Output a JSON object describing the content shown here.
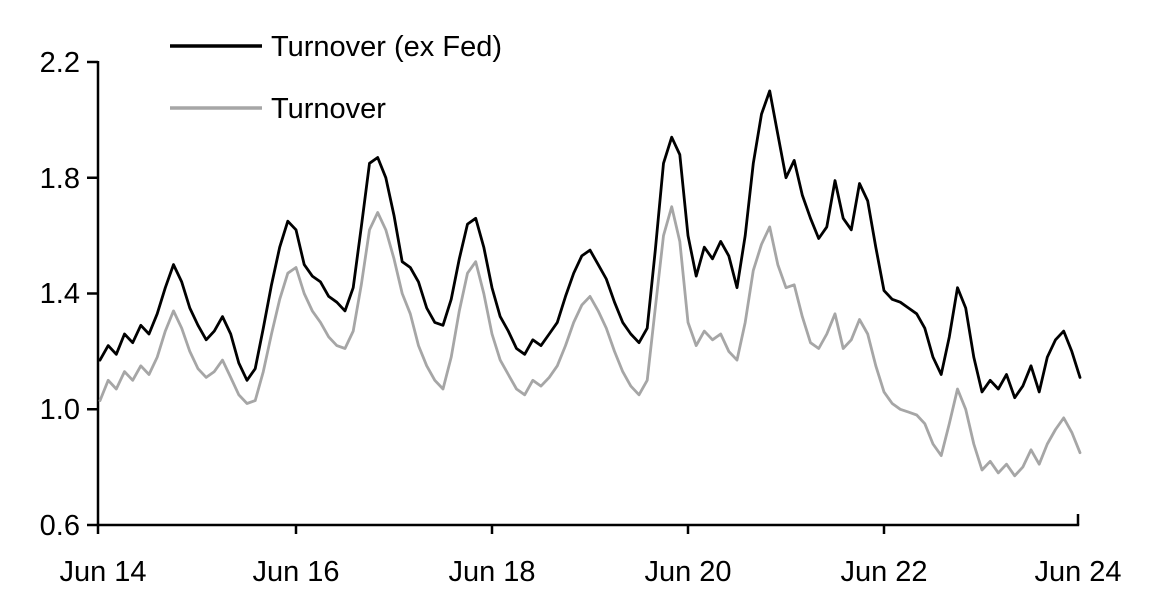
{
  "chart_data": {
    "type": "line",
    "title": "",
    "x_tick_labels": [
      "Jun 14",
      "Jun 16",
      "Jun 18",
      "Jun 20",
      "Jun 22",
      "Jun 24"
    ],
    "y_tick_labels": [
      "2.2",
      "1.8",
      "1.4",
      "1.0",
      "0.6"
    ],
    "y_ticks": [
      0.6,
      1.0,
      1.4,
      1.8,
      2.2
    ],
    "ylim": [
      0.6,
      2.2
    ],
    "x_range": "monthly samples, Jun 2014 to Jun 2024 (121 points)",
    "grid": "off",
    "legend_position": "top-left inside plot",
    "axis_color": "#000000",
    "series": [
      {
        "name": "Turnover (ex Fed)",
        "color": "#000000",
        "values": [
          1.17,
          1.22,
          1.19,
          1.26,
          1.23,
          1.29,
          1.26,
          1.33,
          1.42,
          1.5,
          1.44,
          1.35,
          1.29,
          1.24,
          1.27,
          1.32,
          1.26,
          1.16,
          1.1,
          1.14,
          1.28,
          1.43,
          1.56,
          1.65,
          1.62,
          1.5,
          1.46,
          1.44,
          1.39,
          1.37,
          1.34,
          1.42,
          1.63,
          1.85,
          1.87,
          1.8,
          1.67,
          1.51,
          1.49,
          1.44,
          1.35,
          1.3,
          1.29,
          1.38,
          1.52,
          1.64,
          1.66,
          1.56,
          1.42,
          1.32,
          1.27,
          1.21,
          1.19,
          1.24,
          1.22,
          1.26,
          1.3,
          1.39,
          1.47,
          1.53,
          1.55,
          1.5,
          1.45,
          1.37,
          1.3,
          1.26,
          1.23,
          1.28,
          1.55,
          1.85,
          1.94,
          1.88,
          1.6,
          1.46,
          1.56,
          1.52,
          1.58,
          1.53,
          1.42,
          1.6,
          1.85,
          2.02,
          2.1,
          1.95,
          1.8,
          1.86,
          1.74,
          1.66,
          1.59,
          1.63,
          1.79,
          1.66,
          1.62,
          1.78,
          1.72,
          1.56,
          1.41,
          1.38,
          1.37,
          1.35,
          1.33,
          1.28,
          1.18,
          1.12,
          1.25,
          1.42,
          1.35,
          1.18,
          1.06,
          1.1,
          1.07,
          1.12,
          1.04,
          1.08,
          1.15,
          1.06,
          1.18,
          1.24,
          1.27,
          1.2,
          1.11
        ]
      },
      {
        "name": "Turnover",
        "color": "#a6a6a6",
        "values": [
          1.03,
          1.1,
          1.07,
          1.13,
          1.1,
          1.15,
          1.12,
          1.18,
          1.27,
          1.34,
          1.28,
          1.2,
          1.14,
          1.11,
          1.13,
          1.17,
          1.11,
          1.05,
          1.02,
          1.03,
          1.13,
          1.26,
          1.38,
          1.47,
          1.49,
          1.4,
          1.34,
          1.3,
          1.25,
          1.22,
          1.21,
          1.27,
          1.43,
          1.62,
          1.68,
          1.62,
          1.52,
          1.4,
          1.33,
          1.22,
          1.15,
          1.1,
          1.07,
          1.18,
          1.34,
          1.47,
          1.51,
          1.4,
          1.26,
          1.17,
          1.12,
          1.07,
          1.05,
          1.1,
          1.08,
          1.11,
          1.15,
          1.22,
          1.3,
          1.36,
          1.39,
          1.34,
          1.28,
          1.2,
          1.13,
          1.08,
          1.05,
          1.1,
          1.35,
          1.6,
          1.7,
          1.58,
          1.3,
          1.22,
          1.27,
          1.24,
          1.26,
          1.2,
          1.17,
          1.3,
          1.48,
          1.57,
          1.63,
          1.5,
          1.42,
          1.43,
          1.32,
          1.23,
          1.21,
          1.26,
          1.33,
          1.21,
          1.24,
          1.31,
          1.26,
          1.15,
          1.06,
          1.02,
          1.0,
          0.99,
          0.98,
          0.95,
          0.88,
          0.84,
          0.95,
          1.07,
          1.0,
          0.88,
          0.79,
          0.82,
          0.78,
          0.81,
          0.77,
          0.8,
          0.86,
          0.81,
          0.88,
          0.93,
          0.97,
          0.92,
          0.85
        ]
      }
    ]
  }
}
